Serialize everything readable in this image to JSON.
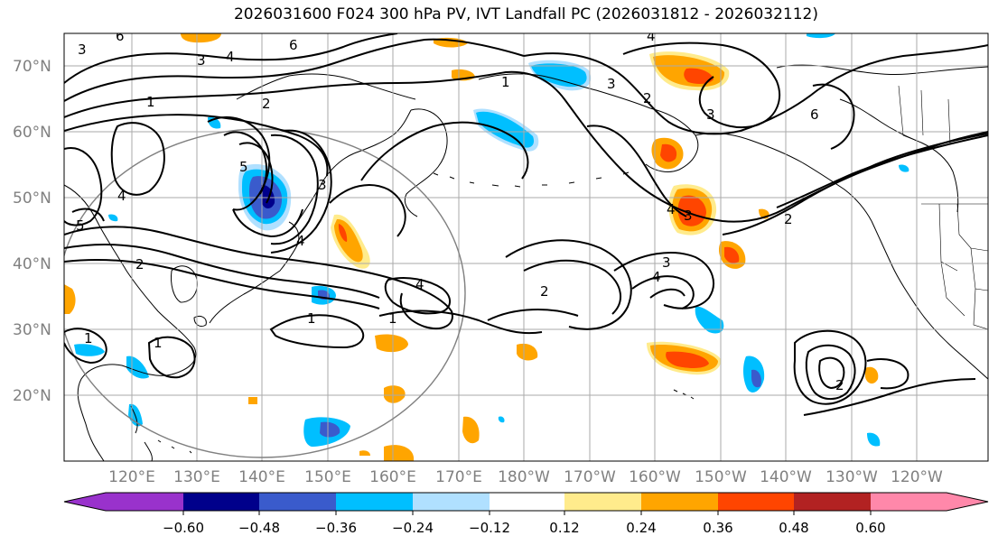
{
  "title": "2026031600 F024 300 hPa PV, IVT Landfall PC (2026031812 - 2026032112)",
  "lat_labels": [
    "70°N",
    "60°N",
    "50°N",
    "40°N",
    "30°N",
    "20°N"
  ],
  "lon_labels": [
    "120°E",
    "130°E",
    "140°E",
    "150°E",
    "160°E",
    "170°E",
    "180°W",
    "170°W",
    "160°W",
    "150°W",
    "140°W",
    "130°W",
    "120°W"
  ],
  "colorbar": {
    "colors": [
      "#9932cc",
      "#00008b",
      "#3a5bcc",
      "#00bfff",
      "#b0e0ff",
      "#ffffff",
      "#ffeb8c",
      "#ffa500",
      "#ff4500",
      "#b22222",
      "#ff88aa"
    ],
    "ticks": [
      "−0.60",
      "−0.48",
      "−0.36",
      "−0.24",
      "−0.12",
      "0.12",
      "0.24",
      "0.36",
      "0.48",
      "0.60"
    ]
  },
  "contour_labels": [
    "3",
    "5",
    "6",
    "4",
    "3",
    "6",
    "1",
    "2",
    "1",
    "4",
    "5",
    "4",
    "3",
    "2",
    "1",
    "4",
    "1",
    "2",
    "1",
    "3",
    "2",
    "6",
    "3",
    "4",
    "3",
    "4",
    "2",
    "1",
    "4",
    "2",
    "3"
  ],
  "colors": {
    "contour": "#000000",
    "grid": "#aaaaaa",
    "coast": "#000000",
    "circle": "#808080",
    "axis_text": "#808080"
  }
}
